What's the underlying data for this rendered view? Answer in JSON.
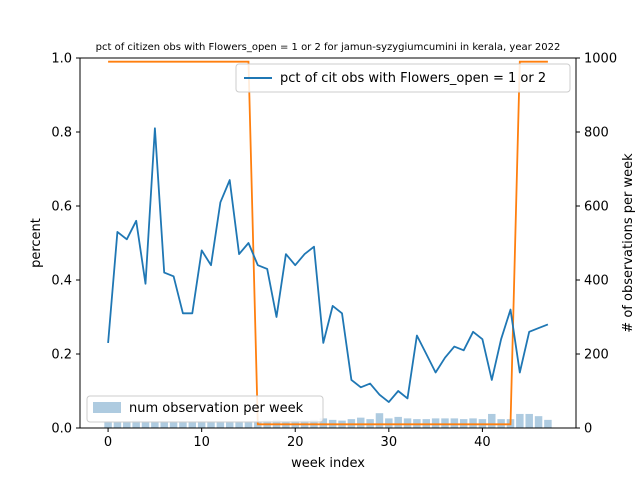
{
  "chart_data": {
    "type": "line",
    "title": "pct of citizen obs with Flowers_open = 1 or 2 for jamun-syzygiumcumini in kerala, year 2022",
    "xlabel": "week index",
    "ylabel": "percent",
    "y2label": "# of observations per week",
    "xlim": [
      -3,
      50
    ],
    "ylim": [
      0,
      1
    ],
    "y2lim": [
      0,
      1000
    ],
    "xticks": [
      0,
      10,
      20,
      30,
      40
    ],
    "yticks": [
      0.0,
      0.2,
      0.4,
      0.6,
      0.8,
      1.0
    ],
    "y2ticks": [
      0,
      200,
      400,
      600,
      800,
      1000
    ],
    "grid": false,
    "series": [
      {
        "name": "pct of cit obs with Flowers_open = 1 or 2",
        "axis": "left",
        "color": "#1f77b4",
        "x": [
          0,
          1,
          2,
          3,
          4,
          5,
          6,
          7,
          8,
          9,
          10,
          11,
          12,
          13,
          14,
          15,
          16,
          17,
          18,
          19,
          20,
          21,
          22,
          23,
          24,
          25,
          26,
          27,
          28,
          29,
          30,
          31,
          32,
          33,
          34,
          35,
          36,
          37,
          38,
          39,
          40,
          41,
          42,
          43,
          44,
          45,
          46,
          47
        ],
        "values": [
          0.23,
          0.53,
          0.51,
          0.56,
          0.39,
          0.81,
          0.42,
          0.41,
          0.31,
          0.31,
          0.48,
          0.44,
          0.61,
          0.67,
          0.47,
          0.5,
          0.44,
          0.43,
          0.3,
          0.47,
          0.44,
          0.47,
          0.49,
          0.23,
          0.33,
          0.31,
          0.13,
          0.11,
          0.12,
          0.09,
          0.07,
          0.1,
          0.08,
          0.25,
          0.2,
          0.15,
          0.19,
          0.22,
          0.21,
          0.26,
          0.24,
          0.13,
          0.24,
          0.32,
          0.15,
          0.26,
          0.27,
          0.28
        ]
      },
      {
        "name": "",
        "axis": "right",
        "color": "#ff7f0e",
        "x": [
          0,
          15,
          16,
          43,
          44,
          47
        ],
        "values": [
          990,
          990,
          10,
          10,
          990,
          990
        ]
      },
      {
        "name": "num observation per week",
        "axis": "right",
        "type": "bar",
        "color": "#aecbe0",
        "x": [
          0,
          1,
          2,
          3,
          4,
          5,
          6,
          7,
          8,
          9,
          10,
          11,
          12,
          13,
          14,
          15,
          16,
          17,
          18,
          19,
          20,
          21,
          22,
          23,
          24,
          25,
          26,
          27,
          28,
          29,
          30,
          31,
          32,
          33,
          34,
          35,
          36,
          37,
          38,
          39,
          40,
          41,
          42,
          43,
          44,
          45,
          46,
          47
        ],
        "values": [
          18,
          16,
          18,
          20,
          18,
          18,
          18,
          18,
          18,
          18,
          18,
          18,
          18,
          18,
          18,
          18,
          18,
          20,
          22,
          18,
          20,
          20,
          22,
          26,
          22,
          20,
          24,
          28,
          24,
          40,
          26,
          30,
          26,
          24,
          24,
          26,
          26,
          26,
          24,
          26,
          24,
          38,
          24,
          24,
          38,
          38,
          32,
          22
        ]
      }
    ],
    "legends": [
      {
        "entry": "pct of cit obs with Flowers_open = 1 or 2",
        "placement": "top-right"
      },
      {
        "entry": "num observation per week",
        "placement": "bottom-left"
      }
    ]
  }
}
